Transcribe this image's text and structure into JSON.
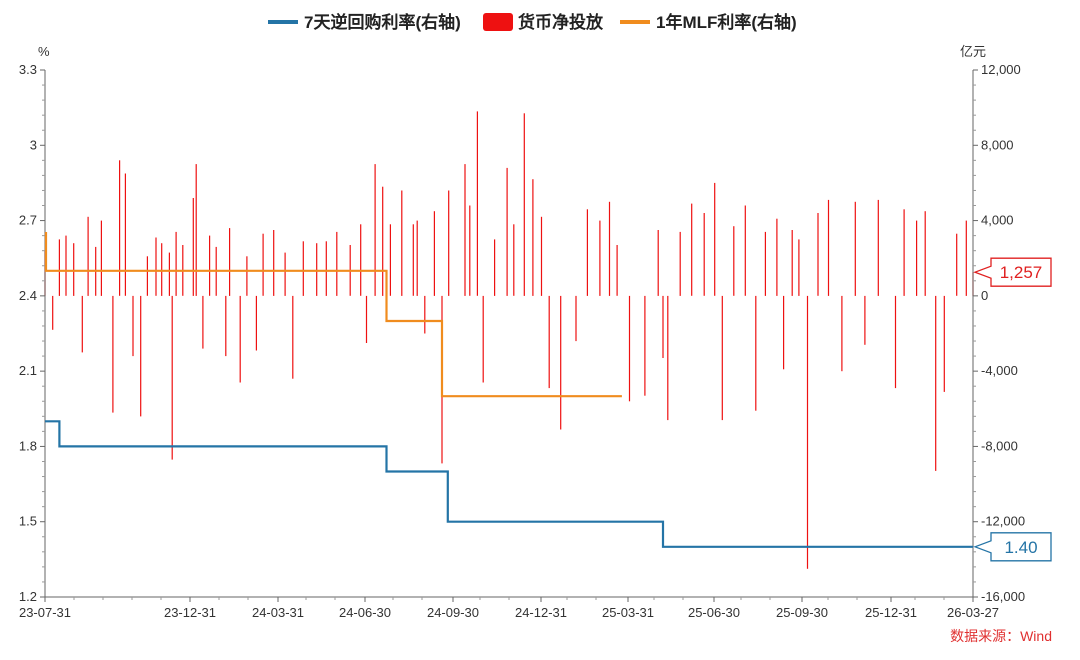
{
  "chart_data": {
    "type": "bar",
    "xlim": [
      "2023-07-31",
      "2026-03-27"
    ],
    "x_ticks": [
      "23-07-31",
      "23-12-31",
      "24-03-31",
      "24-06-30",
      "24-09-30",
      "24-12-31",
      "25-03-31",
      "25-06-30",
      "25-09-30",
      "25-12-31",
      "26-03-27"
    ],
    "y_left": {
      "label": "%",
      "ylim": [
        1.2,
        3.3
      ],
      "ticks": [
        1.2,
        1.5,
        1.8,
        2.1,
        2.4,
        2.7,
        3,
        3.3
      ],
      "tick_labels": [
        "1.2",
        "1.5",
        "1.8",
        "2.1",
        "2.4",
        "2.7",
        "3",
        "3.3"
      ]
    },
    "y_right": {
      "label": "亿元",
      "ylim": [
        -16000,
        12000
      ],
      "ticks": [
        -16000,
        -12000,
        -8000,
        -4000,
        0,
        4000,
        8000,
        12000
      ],
      "tick_labels": [
        "-16,000",
        "-12,000",
        "-8,000",
        "-4,000",
        "0",
        "4,000",
        "8,000",
        "12,000"
      ]
    },
    "legend": [
      "7天逆回购利率(右轴)",
      "货币净投放",
      "1年MLF利率(右轴)"
    ],
    "series": [
      {
        "name": "7天逆回购利率(右轴)",
        "type": "step-line",
        "axis": "left",
        "color": "#2474a6",
        "points": [
          [
            "2023-07-31",
            1.9
          ],
          [
            "2023-08-15",
            1.8
          ],
          [
            "2024-07-22",
            1.7
          ],
          [
            "2024-09-24",
            1.5
          ],
          [
            "2025-05-07",
            1.4
          ],
          [
            "2026-03-27",
            1.4
          ]
        ]
      },
      {
        "name": "货币净投放",
        "type": "bar",
        "axis": "right",
        "color": "#ee1111",
        "note": "daily net liquidity injection (100M CNY), approx. read",
        "points": [
          [
            "2023-07-31",
            2400
          ],
          [
            "2023-08-08",
            -1800
          ],
          [
            "2023-08-15",
            3000
          ],
          [
            "2023-08-22",
            3200
          ],
          [
            "2023-08-30",
            2800
          ],
          [
            "2023-09-08",
            -3000
          ],
          [
            "2023-09-14",
            4200
          ],
          [
            "2023-09-22",
            2600
          ],
          [
            "2023-09-28",
            4000
          ],
          [
            "2023-10-10",
            -6200
          ],
          [
            "2023-10-17",
            7200
          ],
          [
            "2023-10-23",
            6500
          ],
          [
            "2023-10-31",
            -3200
          ],
          [
            "2023-11-08",
            -6400
          ],
          [
            "2023-11-15",
            2100
          ],
          [
            "2023-11-24",
            3100
          ],
          [
            "2023-11-30",
            2800
          ],
          [
            "2023-12-08",
            2300
          ],
          [
            "2023-12-11",
            -8700
          ],
          [
            "2023-12-15",
            3400
          ],
          [
            "2023-12-22",
            2700
          ],
          [
            "2024-01-02",
            5200
          ],
          [
            "2024-01-05",
            7000
          ],
          [
            "2024-01-12",
            -2800
          ],
          [
            "2024-01-19",
            3200
          ],
          [
            "2024-01-26",
            2600
          ],
          [
            "2024-02-05",
            -3200
          ],
          [
            "2024-02-09",
            3600
          ],
          [
            "2024-02-20",
            -4600
          ],
          [
            "2024-02-27",
            2100
          ],
          [
            "2024-03-08",
            -2900
          ],
          [
            "2024-03-15",
            3300
          ],
          [
            "2024-03-26",
            3500
          ],
          [
            "2024-04-07",
            2300
          ],
          [
            "2024-04-15",
            -4400
          ],
          [
            "2024-04-26",
            2900
          ],
          [
            "2024-05-10",
            2800
          ],
          [
            "2024-05-20",
            2900
          ],
          [
            "2024-05-31",
            3400
          ],
          [
            "2024-06-14",
            2700
          ],
          [
            "2024-06-25",
            3800
          ],
          [
            "2024-07-01",
            -2500
          ],
          [
            "2024-07-10",
            7000
          ],
          [
            "2024-07-18",
            5800
          ],
          [
            "2024-07-26",
            3800
          ],
          [
            "2024-08-07",
            5600
          ],
          [
            "2024-08-19",
            3800
          ],
          [
            "2024-08-23",
            4000
          ],
          [
            "2024-08-31",
            -2000
          ],
          [
            "2024-09-10",
            4500
          ],
          [
            "2024-09-18",
            -8900
          ],
          [
            "2024-09-25",
            5600
          ],
          [
            "2024-10-12",
            7000
          ],
          [
            "2024-10-17",
            4800
          ],
          [
            "2024-10-25",
            9800
          ],
          [
            "2024-10-31",
            -4600
          ],
          [
            "2024-11-12",
            3000
          ],
          [
            "2024-11-25",
            6800
          ],
          [
            "2024-12-02",
            3800
          ],
          [
            "2024-12-13",
            9700
          ],
          [
            "2024-12-22",
            6200
          ],
          [
            "2024-12-31",
            4200
          ],
          [
            "2025-01-08",
            -4900
          ],
          [
            "2025-01-20",
            -7100
          ],
          [
            "2025-02-05",
            -2400
          ],
          [
            "2025-02-17",
            4600
          ],
          [
            "2025-03-02",
            4000
          ],
          [
            "2025-03-12",
            5000
          ],
          [
            "2025-03-20",
            2700
          ],
          [
            "2025-04-02",
            -5600
          ],
          [
            "2025-04-18",
            -5300
          ],
          [
            "2025-05-02",
            3500
          ],
          [
            "2025-05-07",
            -3300
          ],
          [
            "2025-05-12",
            -6600
          ],
          [
            "2025-05-25",
            3400
          ],
          [
            "2025-06-06",
            4900
          ],
          [
            "2025-06-19",
            4400
          ],
          [
            "2025-06-30",
            6000
          ],
          [
            "2025-07-08",
            -6600
          ],
          [
            "2025-07-20",
            3700
          ],
          [
            "2025-08-01",
            4800
          ],
          [
            "2025-08-12",
            -6100
          ],
          [
            "2025-08-22",
            3400
          ],
          [
            "2025-09-03",
            4100
          ],
          [
            "2025-09-10",
            -3900
          ],
          [
            "2025-09-19",
            3500
          ],
          [
            "2025-09-26",
            3000
          ],
          [
            "2025-10-05",
            -14500
          ],
          [
            "2025-10-16",
            4400
          ],
          [
            "2025-10-27",
            5100
          ],
          [
            "2025-11-10",
            -4000
          ],
          [
            "2025-11-24",
            5000
          ],
          [
            "2025-12-04",
            -2600
          ],
          [
            "2025-12-18",
            5100
          ],
          [
            "2026-01-05",
            -4900
          ],
          [
            "2026-01-14",
            4600
          ],
          [
            "2026-01-27",
            4000
          ],
          [
            "2026-02-05",
            4500
          ],
          [
            "2026-02-16",
            -9300
          ],
          [
            "2026-02-25",
            -5100
          ],
          [
            "2026-03-10",
            3300
          ],
          [
            "2026-03-20",
            4000
          ],
          [
            "2026-03-27",
            1257
          ]
        ]
      },
      {
        "name": "1年MLF利率(右轴)",
        "type": "step-line",
        "axis": "left",
        "color": "#f08c1e",
        "points": [
          [
            "2023-07-31",
            2.65
          ],
          [
            "2023-08-01",
            2.5
          ],
          [
            "2024-07-22",
            2.3
          ],
          [
            "2024-09-18",
            2.0
          ],
          [
            "2025-03-25",
            2.0
          ]
        ]
      }
    ],
    "callouts": [
      {
        "label": "1,257",
        "series": "货币净投放",
        "axis": "right",
        "value": 1257,
        "color": "#e02020"
      },
      {
        "label": "1.40",
        "series": "7天逆回购利率(右轴)",
        "axis": "left",
        "value": 1.4,
        "color": "#2474a6"
      }
    ],
    "source": "数据来源：Wind"
  }
}
